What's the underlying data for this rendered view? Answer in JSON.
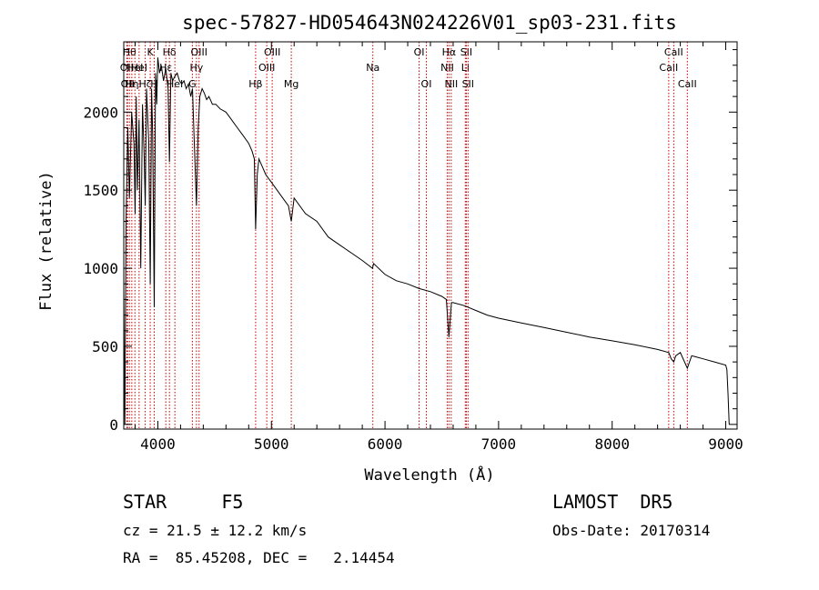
{
  "chart_data": {
    "type": "line",
    "title": "spec-57827-HD054643N024226V01_sp03-231.fits",
    "xlabel": "Wavelength (Å)",
    "ylabel": "Flux (relative)",
    "xlim": [
      3700,
      9100
    ],
    "ylim": [
      -30,
      2450
    ],
    "x_ticks": [
      4000,
      5000,
      6000,
      7000,
      8000,
      9000
    ],
    "y_ticks": [
      0,
      500,
      1000,
      1500,
      2000
    ],
    "x_tick_labels": [
      "4000",
      "5000",
      "6000",
      "7000",
      "8000",
      "9000"
    ],
    "y_tick_labels": [
      "0",
      "500",
      "1000",
      "1500",
      "2000"
    ],
    "grid": false,
    "legend": "none",
    "line_color": "#000000",
    "marker_color": "#cc0000",
    "series": [
      {
        "x": [
          3700,
          3705,
          3710,
          3720,
          3735,
          3750,
          3770,
          3790,
          3800,
          3810,
          3820,
          3835,
          3850,
          3865,
          3880,
          3889,
          3900,
          3920,
          3933,
          3945,
          3955,
          3968,
          3980,
          3990,
          4000,
          4015,
          4030,
          4050,
          4070,
          4090,
          4102,
          4115,
          4130,
          4150,
          4170,
          4190,
          4210,
          4230,
          4250,
          4270,
          4290,
          4305,
          4320,
          4340,
          4355,
          4370,
          4390,
          4410,
          4430,
          4450,
          4480,
          4510,
          4550,
          4600,
          4650,
          4700,
          4750,
          4800,
          4830,
          4850,
          4861,
          4875,
          4890,
          4920,
          4950,
          5000,
          5050,
          5100,
          5150,
          5175,
          5200,
          5300,
          5400,
          5500,
          5600,
          5700,
          5800,
          5890,
          5900,
          6000,
          6100,
          6200,
          6300,
          6400,
          6500,
          6540,
          6563,
          6585,
          6600,
          6700,
          6800,
          6900,
          7000,
          7200,
          7400,
          7600,
          7800,
          8000,
          8200,
          8400,
          8498,
          8520,
          8542,
          8560,
          8600,
          8662,
          8700,
          8800,
          8900,
          9000,
          9010,
          9020,
          9030
        ],
        "y": [
          870,
          350,
          0,
          1300,
          1900,
          1450,
          2000,
          1800,
          1350,
          2100,
          1500,
          1950,
          1000,
          2050,
          1700,
          1400,
          2150,
          1800,
          900,
          2150,
          1850,
          750,
          2250,
          2050,
          2350,
          2250,
          2300,
          2200,
          2280,
          2150,
          1680,
          2250,
          2200,
          2230,
          2250,
          2200,
          2180,
          2200,
          2150,
          2180,
          2100,
          2150,
          1820,
          1400,
          1900,
          2100,
          2150,
          2120,
          2080,
          2100,
          2050,
          2050,
          2020,
          2000,
          1950,
          1900,
          1850,
          1800,
          1750,
          1700,
          1250,
          1600,
          1700,
          1650,
          1600,
          1550,
          1500,
          1450,
          1400,
          1300,
          1450,
          1350,
          1300,
          1200,
          1150,
          1100,
          1050,
          1000,
          1030,
          960,
          920,
          900,
          870,
          850,
          820,
          800,
          560,
          780,
          780,
          760,
          730,
          700,
          680,
          650,
          620,
          590,
          560,
          535,
          510,
          480,
          460,
          420,
          400,
          440,
          460,
          360,
          440,
          420,
          400,
          380,
          350,
          200,
          0
        ]
      }
    ],
    "line_markers": [
      {
        "wavelength": 3727,
        "label": "OII",
        "row": 1
      },
      {
        "wavelength": 3734,
        "label": "OII",
        "row": 2
      },
      {
        "wavelength": 3750,
        "label": "Hθ",
        "row": 0
      },
      {
        "wavelength": 3771,
        "label": "Hη",
        "row": 2
      },
      {
        "wavelength": 3798,
        "label": "HeI",
        "row": 1
      },
      {
        "wavelength": 3835,
        "label": "HeI",
        "row": 1
      },
      {
        "wavelength": 3889,
        "label": "Hζ",
        "row": 2
      },
      {
        "wavelength": 3933,
        "label": "K",
        "row": 0
      },
      {
        "wavelength": 3968,
        "label": "H",
        "row": 2
      },
      {
        "wavelength": 4102,
        "label": "Hδ",
        "row": 0
      },
      {
        "wavelength": 4070,
        "label": "Hε",
        "row": 1
      },
      {
        "wavelength": 4150,
        "label": "HeI",
        "row": 2
      },
      {
        "wavelength": 4340,
        "label": "Hγ",
        "row": 1
      },
      {
        "wavelength": 4304,
        "label": "G",
        "row": 2
      },
      {
        "wavelength": 4363,
        "label": "OIII",
        "row": 0
      },
      {
        "wavelength": 4861,
        "label": "Hβ",
        "row": 2
      },
      {
        "wavelength": 4959,
        "label": "OIII",
        "row": 1
      },
      {
        "wavelength": 5007,
        "label": "OIII",
        "row": 0
      },
      {
        "wavelength": 5175,
        "label": "Mg",
        "row": 2
      },
      {
        "wavelength": 5893,
        "label": "Na",
        "row": 1
      },
      {
        "wavelength": 6300,
        "label": "OI",
        "row": 0
      },
      {
        "wavelength": 6364,
        "label": "OI",
        "row": 2
      },
      {
        "wavelength": 6548,
        "label": "NII",
        "row": 1
      },
      {
        "wavelength": 6563,
        "label": "Hα",
        "row": 0
      },
      {
        "wavelength": 6583,
        "label": "NII",
        "row": 2
      },
      {
        "wavelength": 6707,
        "label": "Li",
        "row": 1
      },
      {
        "wavelength": 6716,
        "label": "SII",
        "row": 0
      },
      {
        "wavelength": 6731,
        "label": "SII",
        "row": 2
      },
      {
        "wavelength": 8498,
        "label": "CaII",
        "row": 1
      },
      {
        "wavelength": 8542,
        "label": "CaII",
        "row": 0
      },
      {
        "wavelength": 8662,
        "label": "CaII",
        "row": 2
      }
    ]
  },
  "footer": {
    "object_class": "STAR     F5",
    "survey": "LAMOST  DR5",
    "redshift": "cz = 21.5 ± 12.2 km/s",
    "obs_date": "Obs-Date: 20170314",
    "coords": "RA =  85.45208, DEC =   2.14454"
  }
}
